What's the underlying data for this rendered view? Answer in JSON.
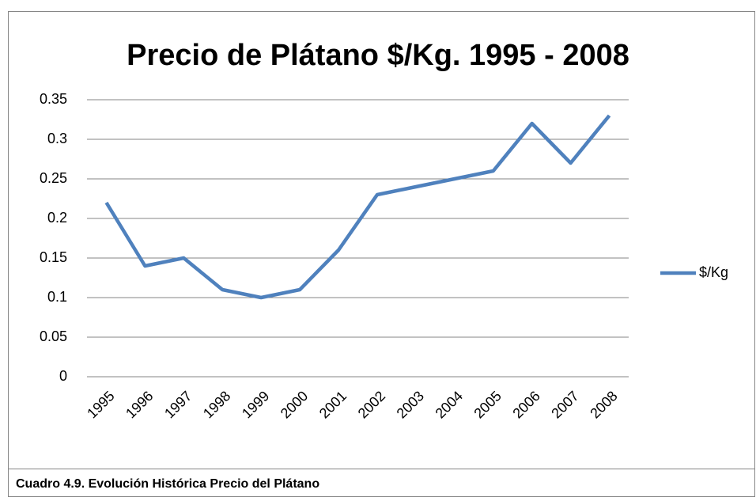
{
  "chart_data": {
    "type": "line",
    "title": "Precio de Plátano $/Kg. 1995 - 2008",
    "categories": [
      "1995",
      "1996",
      "1997",
      "1998",
      "1999",
      "2000",
      "2001",
      "2002",
      "2003",
      "2004",
      "2005",
      "2006",
      "2007",
      "2008"
    ],
    "series": [
      {
        "name": "$/Kg",
        "color": "#4f81bd",
        "values": [
          0.22,
          0.14,
          0.15,
          0.11,
          0.1,
          0.11,
          0.16,
          0.23,
          0.24,
          0.25,
          0.26,
          0.32,
          0.27,
          0.33
        ]
      }
    ],
    "ylim": [
      0,
      0.35
    ],
    "yticks": [
      0,
      0.05,
      0.1,
      0.15,
      0.2,
      0.25,
      0.3,
      0.35
    ],
    "grid": true,
    "legend": "right"
  },
  "caption": "Cuadro 4.9. Evolución Histórica Precio del Plátano"
}
